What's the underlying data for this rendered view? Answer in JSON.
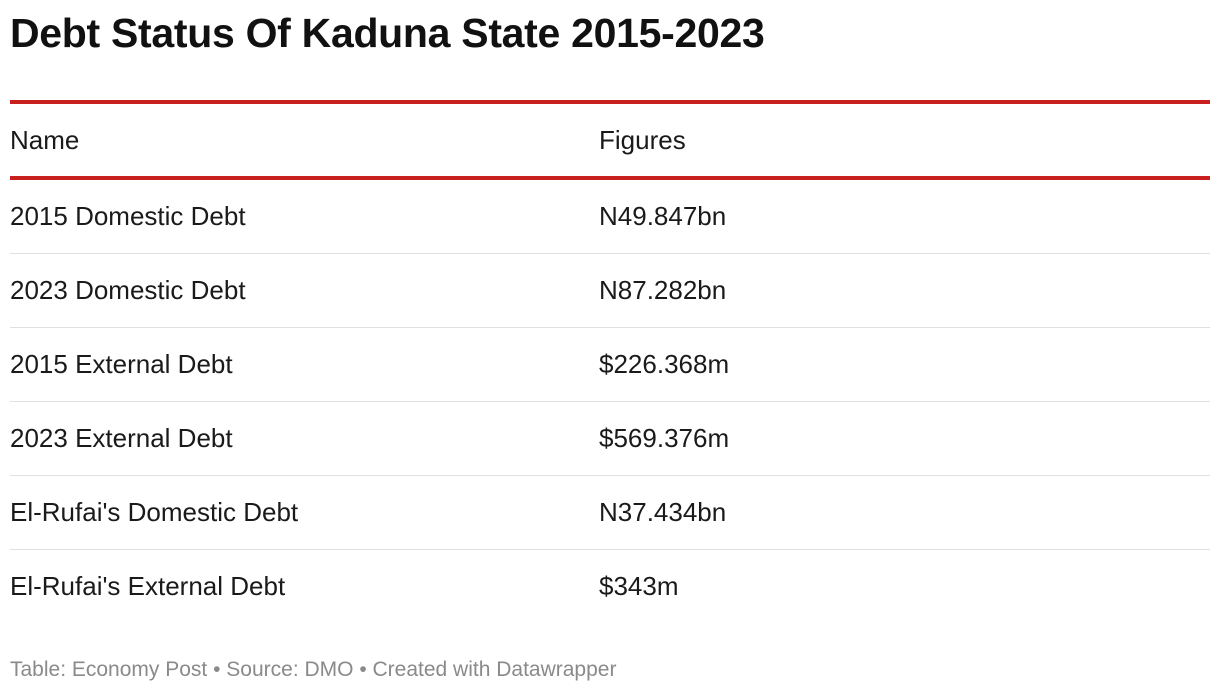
{
  "header": {
    "title": "Debt Status Of Kaduna State 2015-2023"
  },
  "table": {
    "columns": [
      "Name",
      "Figures"
    ],
    "rows": [
      [
        "2015 Domestic Debt",
        "N49.847bn"
      ],
      [
        "2023 Domestic Debt",
        "N87.282bn"
      ],
      [
        "2015 External Debt",
        "$226.368m"
      ],
      [
        "2023 External Debt",
        "$569.376m"
      ],
      [
        "El-Rufai's Domestic Debt",
        "N37.434bn"
      ],
      [
        "El-Rufai's External Debt",
        "$343m"
      ]
    ]
  },
  "footer": {
    "text": "Table: Economy Post • Source: DMO • Created with Datawrapper"
  }
}
